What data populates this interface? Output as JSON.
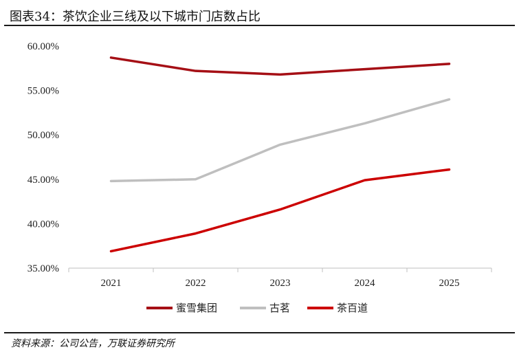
{
  "header": {
    "title": "图表34：茶饮企业三线及以下城市门店数占比"
  },
  "footer": {
    "source": "资料来源：公司公告，万联证券研究所"
  },
  "chart_data": {
    "type": "line",
    "x": [
      "2021",
      "2022",
      "2023",
      "2024",
      "2025"
    ],
    "ylim": [
      35,
      60
    ],
    "yticks": [
      "60.00%",
      "55.00%",
      "50.00%",
      "45.00%",
      "40.00%",
      "35.00%"
    ],
    "ytick_values": [
      60,
      55,
      50,
      45,
      40,
      35
    ],
    "legend_position": "bottom",
    "grid": false,
    "series": [
      {
        "name": "蜜雪集团",
        "color": "#a50f15",
        "values": [
          58.7,
          57.2,
          56.8,
          57.4,
          58.0
        ]
      },
      {
        "name": "古茗",
        "color": "#bfbfbf",
        "values": [
          44.8,
          45.0,
          48.9,
          51.3,
          54.0
        ]
      },
      {
        "name": "茶百道",
        "color": "#cc0000",
        "values": [
          36.9,
          38.9,
          41.6,
          44.9,
          46.1
        ]
      }
    ]
  }
}
